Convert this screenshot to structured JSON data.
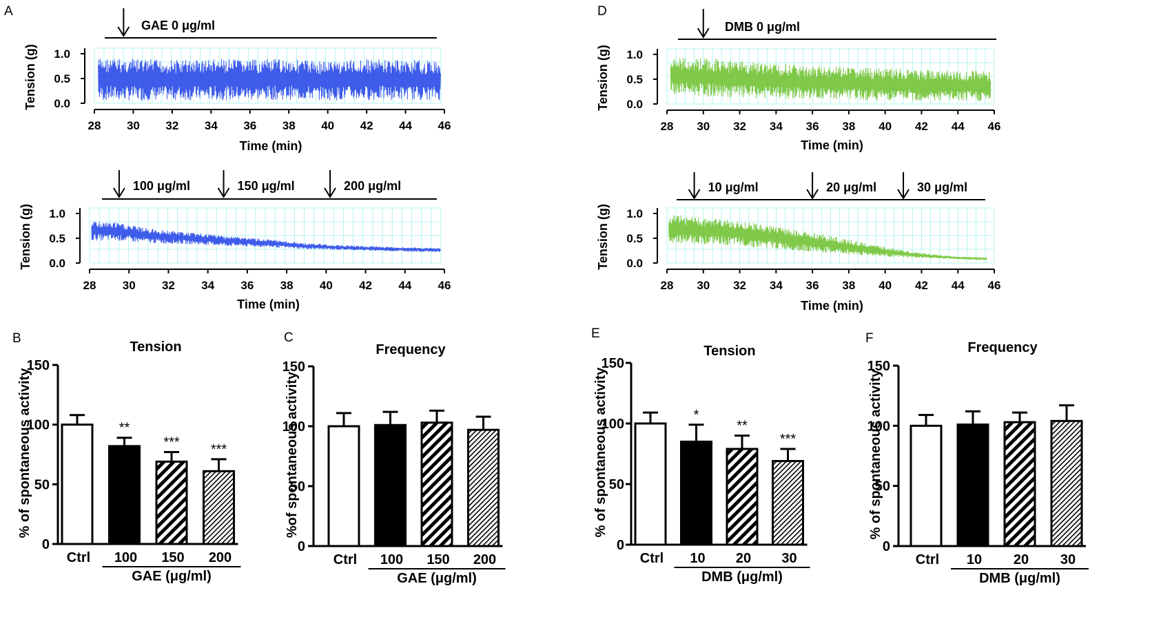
{
  "figure": {
    "colors": {
      "gae_trace": "#1f3fe6",
      "dmb_trace": "#6cc02a",
      "grid": "#9ff2ee",
      "axis": "#000000"
    }
  },
  "chart_data": [
    {
      "panel_letter": "A",
      "panel_id": "A-top",
      "type": "line",
      "title": "GAE 0 μg/ml",
      "xlabel": "Time (min)",
      "ylabel": "Tension (g)",
      "xlim": [
        28,
        46
      ],
      "ylim": [
        0,
        1
      ],
      "xticks": [
        "28",
        "30",
        "32",
        "34",
        "36",
        "38",
        "40",
        "42",
        "44",
        "46"
      ],
      "yticks": [
        "0.0",
        "0.5",
        "1.0"
      ],
      "trace_color": "#1f3fe6",
      "series": [
        {
          "name": "GAE 0 μg/ml",
          "x": [
            28.2,
            30,
            32,
            34,
            36,
            38,
            40,
            42,
            44,
            45.8
          ],
          "ymin": [
            0.05,
            0.05,
            0.06,
            0.06,
            0.06,
            0.07,
            0.06,
            0.06,
            0.07,
            0.06
          ],
          "ymax": [
            0.92,
            0.9,
            0.88,
            0.9,
            0.88,
            0.9,
            0.86,
            0.9,
            0.88,
            0.86
          ]
        }
      ],
      "annotations": [
        {
          "label": "GAE 0 μg/ml",
          "x": 29.5
        }
      ]
    },
    {
      "panel_id": "A-bottom",
      "type": "line",
      "xlabel": "Time (min)",
      "ylabel": "Tension (g)",
      "xlim": [
        28,
        46
      ],
      "ylim": [
        0,
        1
      ],
      "xticks": [
        "28",
        "30",
        "32",
        "34",
        "36",
        "38",
        "40",
        "42",
        "44",
        "46"
      ],
      "yticks": [
        "0.0",
        "0.5",
        "1.0"
      ],
      "trace_color": "#1f3fe6",
      "series": [
        {
          "name": "GAE 100–200 μg/ml",
          "x": [
            28.1,
            29.4,
            31,
            33,
            35,
            37,
            39,
            41,
            43,
            45.8
          ],
          "ymin": [
            0.45,
            0.45,
            0.4,
            0.38,
            0.34,
            0.32,
            0.28,
            0.26,
            0.24,
            0.22
          ],
          "ymax": [
            0.85,
            0.82,
            0.7,
            0.62,
            0.55,
            0.48,
            0.4,
            0.36,
            0.33,
            0.3
          ]
        }
      ],
      "annotations": [
        {
          "label": "100 μg/ml",
          "x": 29.5
        },
        {
          "label": "150 μg/ml",
          "x": 34.8
        },
        {
          "label": "200 μg/ml",
          "x": 40.2
        }
      ]
    },
    {
      "panel_letter": "D",
      "panel_id": "D-top",
      "type": "line",
      "title": "DMB 0 μg/ml",
      "xlabel": "Time (min)",
      "ylabel": "Tension (g)",
      "xlim": [
        28,
        46
      ],
      "ylim": [
        0,
        1
      ],
      "xticks": [
        "28",
        "30",
        "32",
        "34",
        "36",
        "38",
        "40",
        "42",
        "44",
        "46"
      ],
      "yticks": [
        "0.0",
        "0.5",
        "1.0"
      ],
      "trace_color": "#6cc02a",
      "series": [
        {
          "name": "DMB 0 μg/ml",
          "x": [
            28.2,
            30,
            32,
            34,
            36,
            38,
            40,
            42,
            44,
            45.8
          ],
          "ymin": [
            0.2,
            0.15,
            0.12,
            0.1,
            0.09,
            0.08,
            0.07,
            0.06,
            0.05,
            0.05
          ],
          "ymax": [
            0.95,
            0.93,
            0.88,
            0.82,
            0.78,
            0.75,
            0.72,
            0.7,
            0.68,
            0.68
          ]
        }
      ],
      "annotations": [
        {
          "label": "DMB 0 μg/ml",
          "x": 30
        }
      ]
    },
    {
      "panel_id": "D-bottom",
      "type": "line",
      "xlabel": "Time (min)",
      "ylabel": "Tension (g)",
      "xlim": [
        28,
        46
      ],
      "ylim": [
        0,
        1
      ],
      "xticks": [
        "28",
        "30",
        "32",
        "34",
        "36",
        "38",
        "40",
        "42",
        "44",
        "46"
      ],
      "yticks": [
        "0.0",
        "0.5",
        "1.0"
      ],
      "trace_color": "#6cc02a",
      "series": [
        {
          "name": "DMB 10–30 μg/ml",
          "x": [
            28.1,
            30,
            32,
            34,
            36,
            38,
            40,
            42,
            44,
            45.6
          ],
          "ymin": [
            0.4,
            0.38,
            0.34,
            0.28,
            0.22,
            0.17,
            0.13,
            0.1,
            0.08,
            0.07
          ],
          "ymax": [
            1.0,
            0.92,
            0.85,
            0.75,
            0.62,
            0.48,
            0.32,
            0.2,
            0.13,
            0.1
          ]
        }
      ],
      "annotations": [
        {
          "label": "10 μg/ml",
          "x": 29.5
        },
        {
          "label": "20 μg/ml",
          "x": 36
        },
        {
          "label": "30 μg/ml",
          "x": 41
        }
      ]
    },
    {
      "panel_letter": "B",
      "panel_id": "B",
      "type": "bar",
      "title": "Tension",
      "ylabel": "% of spontaneous activity",
      "xlabel": "GAE (μg/ml)",
      "ylim": [
        0,
        150
      ],
      "yticks": [
        "0",
        "50",
        "100",
        "150"
      ],
      "categories": [
        "Ctrl",
        "100",
        "150",
        "200"
      ],
      "values": [
        100,
        82,
        69,
        61
      ],
      "errors": [
        8,
        7,
        8,
        10
      ],
      "significance": [
        "",
        "**",
        "***",
        "***"
      ],
      "fills": [
        "white",
        "black",
        "stripe-coarse",
        "stripe-fine"
      ]
    },
    {
      "panel_letter": "C",
      "panel_id": "C",
      "type": "bar",
      "title": "Frequency",
      "ylabel": "%of spontaneous activity",
      "xlabel": "GAE (μg/ml)",
      "ylim": [
        0,
        150
      ],
      "yticks": [
        "0",
        "50",
        "100",
        "150"
      ],
      "categories": [
        "Ctrl",
        "100",
        "150",
        "200"
      ],
      "values": [
        100,
        101,
        103,
        97
      ],
      "errors": [
        11,
        11,
        10,
        11
      ],
      "significance": [
        "",
        "",
        "",
        ""
      ],
      "fills": [
        "white",
        "black",
        "stripe-coarse",
        "stripe-fine"
      ]
    },
    {
      "panel_letter": "E",
      "panel_id": "E",
      "type": "bar",
      "title": "Tension",
      "ylabel": "% of spontaneous activity",
      "xlabel": "DMB (μg/ml)",
      "ylim": [
        0,
        150
      ],
      "yticks": [
        "0",
        "50",
        "100",
        "150"
      ],
      "categories": [
        "Ctrl",
        "10",
        "20",
        "30"
      ],
      "values": [
        100,
        85,
        79,
        69
      ],
      "errors": [
        9,
        14,
        11,
        10
      ],
      "significance": [
        "",
        "*",
        "**",
        "***"
      ],
      "fills": [
        "white",
        "black",
        "stripe-coarse",
        "stripe-fine"
      ]
    },
    {
      "panel_letter": "F",
      "panel_id": "F",
      "type": "bar",
      "title": "Frequency",
      "ylabel": "% of spontaneous activity",
      "xlabel": "DMB (μg/ml)",
      "ylim": [
        0,
        150
      ],
      "yticks": [
        "0",
        "50",
        "100",
        "150"
      ],
      "categories": [
        "Ctrl",
        "10",
        "20",
        "30"
      ],
      "values": [
        100,
        101,
        103,
        104
      ],
      "errors": [
        9,
        11,
        8,
        13
      ],
      "significance": [
        "",
        "",
        "",
        ""
      ],
      "fills": [
        "white",
        "black",
        "stripe-coarse",
        "stripe-fine"
      ]
    }
  ]
}
